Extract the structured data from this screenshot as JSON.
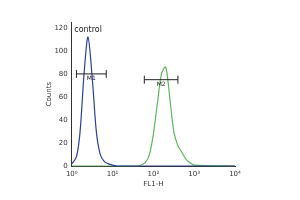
{
  "chart_data": {
    "type": "line",
    "x_label": "FL1-H",
    "y_label": "Counts",
    "x": [
      1,
      1.3,
      1.6,
      2,
      2.5,
      3.2,
      4,
      5,
      6.3,
      8,
      10,
      13,
      16,
      20,
      25,
      32,
      40,
      50,
      63,
      80,
      100,
      126,
      158,
      200,
      251,
      316,
      398,
      501,
      631,
      794,
      1000,
      10000
    ],
    "series": [
      {
        "name": "control",
        "color": "#2b3f9e",
        "values": [
          2,
          8,
          30,
          80,
          112,
          75,
          30,
          10,
          4,
          2,
          1,
          0,
          0,
          0,
          0,
          0,
          0,
          0,
          0,
          0,
          0,
          0,
          0,
          0,
          0,
          0,
          0,
          0,
          0,
          0,
          0,
          0
        ]
      },
      {
        "color": "#5cb85c",
        "values": [
          0,
          0,
          0,
          0,
          0,
          0,
          0,
          0,
          0,
          0,
          0,
          0,
          0,
          0,
          0,
          0,
          0,
          1,
          3,
          10,
          28,
          55,
          80,
          86,
          60,
          30,
          18,
          12,
          6,
          3,
          1,
          0
        ]
      }
    ],
    "log": "x",
    "xlim": [
      1,
      10000
    ],
    "xticks": [
      {
        "value": 1,
        "label": "10⁰"
      },
      {
        "value": 10,
        "label": "10¹"
      },
      {
        "value": 100,
        "label": "10²"
      },
      {
        "value": 1000,
        "label": "10³"
      },
      {
        "value": 10000,
        "label": "10⁴"
      }
    ],
    "ylim": [
      0,
      125
    ],
    "yticks": [
      0,
      20,
      40,
      60,
      80,
      100,
      120
    ],
    "grid": false,
    "annotations": [
      {
        "text": "control",
        "x": 1.15,
        "y": 118
      }
    ],
    "gates": [
      {
        "label": "M1",
        "x": [
          1.3,
          7
        ],
        "y": 80
      },
      {
        "label": "M2",
        "x": [
          60,
          400
        ],
        "y": 75
      }
    ]
  }
}
